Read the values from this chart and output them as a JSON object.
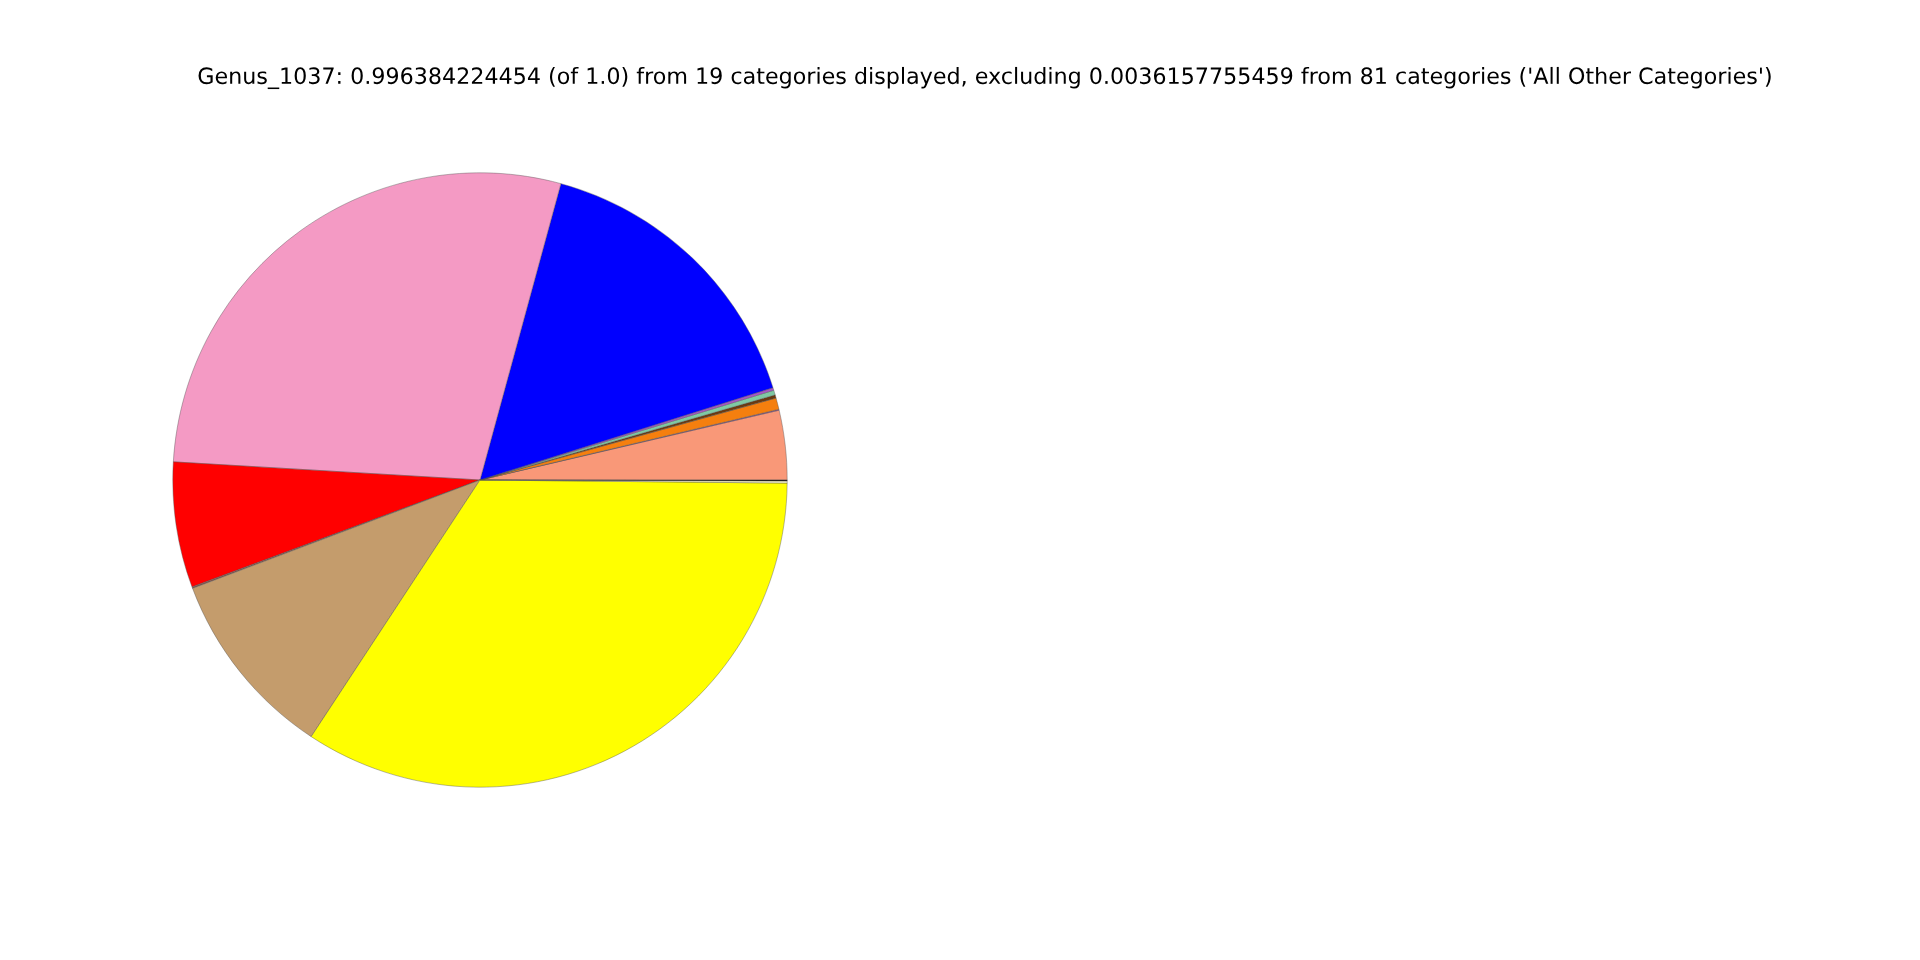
{
  "chart_data": {
    "type": "pie",
    "title": "Genus_1037: 0.996384224454 (of 1.0) from 19 categories displayed, excluding 0.0036157755459 from 81 categories ('All Other Categories')",
    "categories": [
      null,
      null,
      null,
      null,
      null,
      null,
      null,
      null,
      null,
      null,
      null,
      null,
      null,
      null
    ],
    "values": [
      3.65,
      0.05,
      0.6,
      0.17,
      0.25,
      0.14,
      15.9,
      28.3,
      6.6,
      0.08,
      10.0,
      34.1,
      0.11,
      0.05
    ],
    "colors": [
      "#f99878",
      "#9b4f96",
      "#f57f0e",
      "#6b3a10",
      "#7fc9a4",
      "#a855c8",
      "#0000ff",
      "#f49ac4",
      "#ff0000",
      "#8c564b",
      "#c49c6c",
      "#ffff00",
      "#fffacd",
      "#000000"
    ]
  }
}
